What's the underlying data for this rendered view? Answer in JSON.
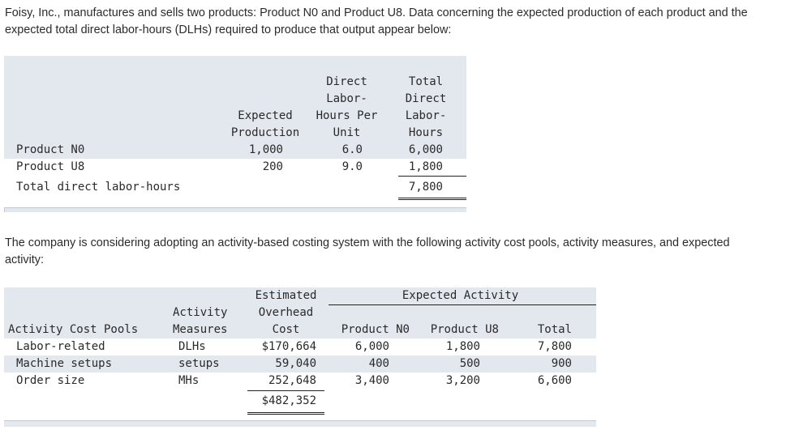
{
  "intro_text": "Foisy, Inc., manufactures and sells two products: Product N0 and Product U8. Data concerning the expected production of each product and the expected total direct labor-hours (DLHs) required to produce that output appear below:",
  "table1": {
    "headers": {
      "expected_production": [
        "Expected",
        "Production"
      ],
      "dlh_per_unit": [
        "Direct",
        "Labor-",
        "Hours Per",
        "Unit"
      ],
      "total_dlh": [
        "Total",
        "Direct",
        "Labor-",
        "Hours"
      ]
    },
    "rows": [
      {
        "label": "Product N0",
        "production": "1,000",
        "per_unit": "6.0",
        "total": "6,000"
      },
      {
        "label": "Product U8",
        "production": "200",
        "per_unit": "9.0",
        "total": "1,800"
      }
    ],
    "total_row": {
      "label": "Total direct labor-hours",
      "total": "7,800"
    }
  },
  "middle_text": "The company is considering adopting an activity-based costing system with the following activity cost pools, activity measures, and expected activity:",
  "table2": {
    "headers": {
      "pools": "Activity Cost Pools",
      "measures": [
        "Activity",
        "Measures"
      ],
      "cost": [
        "Estimated",
        "Overhead",
        "Cost"
      ],
      "expected_activity": "Expected Activity",
      "n0": "Product N0",
      "u8": "Product U8",
      "total": "Total"
    },
    "rows": [
      {
        "pool": "Labor-related",
        "measure": "DLHs",
        "cost": "$170,664",
        "n0": "6,000",
        "u8": "1,800",
        "total": "7,800"
      },
      {
        "pool": "Machine setups",
        "measure": "setups",
        "cost": "59,040",
        "n0": "400",
        "u8": "500",
        "total": "900"
      },
      {
        "pool": "Order size",
        "measure": "MHs",
        "cost": "252,648",
        "n0": "3,400",
        "u8": "3,200",
        "total": "6,600"
      }
    ],
    "total_cost": "$482,352"
  }
}
